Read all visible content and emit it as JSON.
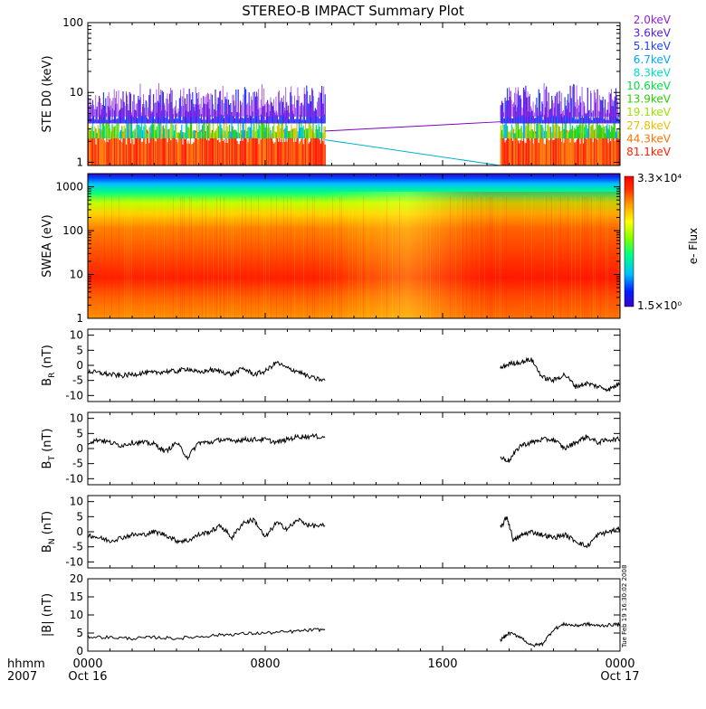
{
  "title": "STEREO-B IMPACT Summary Plot",
  "colors": {
    "axis": "#000000",
    "trace": "#000000",
    "colorbar_stops": [
      "#3a00c8",
      "#0020ff",
      "#00c0ff",
      "#00ff80",
      "#80ff00",
      "#ffff00",
      "#ffa000",
      "#ff3000",
      "#ff0000"
    ]
  },
  "time_axis": {
    "label_line1": "hhmm",
    "label_line2": "2007",
    "range_hours": [
      0,
      24
    ],
    "major_ticks": [
      {
        "h": 0,
        "top": "0000",
        "bottom": "Oct 16"
      },
      {
        "h": 8,
        "top": "0800",
        "bottom": ""
      },
      {
        "h": 16,
        "top": "1600",
        "bottom": ""
      },
      {
        "h": 24,
        "top": "0000",
        "bottom": "Oct 17"
      }
    ],
    "data_gap_hours": [
      10.7,
      18.6
    ]
  },
  "timestamp_note": "Tue Feb 19 16:30:02 2008",
  "chart_data": [
    {
      "id": "ste",
      "type": "line",
      "ylabel": "STE D0 (keV)",
      "yscale": "log",
      "ylim": [
        0.9,
        100
      ],
      "yticks": [
        {
          "v": 1,
          "label": "1"
        },
        {
          "v": 10,
          "label": "10"
        },
        {
          "v": 100,
          "label": "100"
        }
      ],
      "series": [
        {
          "name": "2.0keV",
          "color": "#9020e0"
        },
        {
          "name": "3.6keV",
          "color": "#5020e8"
        },
        {
          "name": "5.1keV",
          "color": "#2040ff"
        },
        {
          "name": "6.7keV",
          "color": "#00a8ff"
        },
        {
          "name": "8.3keV",
          "color": "#00e0c0"
        },
        {
          "name": "10.6keV",
          "color": "#00e040"
        },
        {
          "name": "13.9keV",
          "color": "#30d000"
        },
        {
          "name": "19.1keV",
          "color": "#a0e000"
        },
        {
          "name": "27.8keV",
          "color": "#e8c000"
        },
        {
          "name": "44.3keV",
          "color": "#ff7000"
        },
        {
          "name": "81.1keV",
          "color": "#ff2000"
        }
      ],
      "gap_lines": [
        {
          "x": [
            10.7,
            18.6
          ],
          "y": [
            2.8,
            3.8
          ],
          "color": "#8000c0"
        },
        {
          "x": [
            10.7,
            18.6
          ],
          "y": [
            2.1,
            0.9
          ],
          "color": "#00b0d0"
        }
      ]
    },
    {
      "id": "swea",
      "type": "heatmap",
      "ylabel": "SWEA (eV)",
      "yscale": "log",
      "ylim": [
        1,
        2000
      ],
      "yticks": [
        {
          "v": 1,
          "label": "1"
        },
        {
          "v": 10,
          "label": "10"
        },
        {
          "v": 100,
          "label": "100"
        },
        {
          "v": 1000,
          "label": "1000"
        }
      ],
      "colorbar_label": "e- Flux",
      "colorbar_max": "3.3×10⁴",
      "colorbar_min": "1.5×10⁰"
    },
    {
      "id": "br",
      "type": "line",
      "ylabel": "BR (nT)",
      "label_main": "B",
      "label_sub": "R",
      "label_unit": " (nT)",
      "ylim": [
        -12,
        12
      ],
      "yticks": [
        {
          "v": -10,
          "label": "-10"
        },
        {
          "v": -5,
          "label": "-5"
        },
        {
          "v": 0,
          "label": "0"
        },
        {
          "v": 5,
          "label": "5"
        },
        {
          "v": 10,
          "label": "10"
        }
      ],
      "segments": [
        {
          "x": [
            0,
            0.5,
            1,
            1.5,
            2,
            2.5,
            3,
            3.5,
            4,
            4.5,
            5,
            5.5,
            6,
            6.5,
            7,
            7.5,
            8,
            8.5,
            9,
            9.5,
            10,
            10.7
          ],
          "y": [
            -2,
            -2.5,
            -3,
            -3.5,
            -3,
            -2.5,
            -2.5,
            -2,
            -2,
            -1,
            -2.5,
            -1.5,
            -2,
            -3,
            -1,
            -3,
            -2,
            1,
            -1,
            -2,
            -4,
            -5
          ]
        },
        {
          "x": [
            18.6,
            19,
            19.5,
            20,
            20.5,
            21,
            21.5,
            22,
            22.5,
            23,
            23.5,
            24
          ],
          "y": [
            -1,
            0.5,
            1,
            2,
            -4,
            -5,
            -3,
            -7,
            -6,
            -7,
            -8,
            -6
          ]
        }
      ]
    },
    {
      "id": "bt",
      "type": "line",
      "ylabel": "BT (nT)",
      "label_main": "B",
      "label_sub": "T",
      "label_unit": " (nT)",
      "ylim": [
        -12,
        12
      ],
      "yticks": [
        {
          "v": -10,
          "label": "-10"
        },
        {
          "v": -5,
          "label": "-5"
        },
        {
          "v": 0,
          "label": "0"
        },
        {
          "v": 5,
          "label": "5"
        },
        {
          "v": 10,
          "label": "10"
        }
      ],
      "segments": [
        {
          "x": [
            0,
            0.5,
            1,
            1.5,
            2,
            2.5,
            3,
            3.5,
            4,
            4.5,
            5,
            5.5,
            6,
            6.5,
            7,
            7.5,
            8,
            8.5,
            9,
            9.5,
            10,
            10.7
          ],
          "y": [
            2,
            3,
            2,
            1,
            2,
            2,
            1.5,
            -1,
            2,
            -3,
            2,
            2,
            3,
            2.5,
            3,
            3,
            3,
            2,
            3,
            4,
            4,
            4
          ]
        },
        {
          "x": [
            18.6,
            19,
            19.5,
            20,
            20.5,
            21,
            21.5,
            22,
            22.5,
            23,
            23.5,
            24
          ],
          "y": [
            -3,
            -4,
            1,
            2,
            3,
            3,
            0,
            2,
            4,
            2,
            3,
            3
          ]
        }
      ]
    },
    {
      "id": "bn",
      "type": "line",
      "ylabel": "BN (nT)",
      "label_main": "B",
      "label_sub": "N",
      "label_unit": " (nT)",
      "ylim": [
        -12,
        12
      ],
      "yticks": [
        {
          "v": -10,
          "label": "-10"
        },
        {
          "v": -5,
          "label": "-5"
        },
        {
          "v": 0,
          "label": "0"
        },
        {
          "v": 5,
          "label": "5"
        },
        {
          "v": 10,
          "label": "10"
        }
      ],
      "segments": [
        {
          "x": [
            0,
            0.5,
            1,
            1.5,
            2,
            2.5,
            3,
            3.5,
            4,
            4.5,
            5,
            5.5,
            6,
            6.5,
            7,
            7.5,
            8,
            8.5,
            9,
            9.5,
            10,
            10.7
          ],
          "y": [
            -1,
            -2,
            -3,
            -2,
            -1,
            -1,
            0,
            -1,
            -3,
            -3,
            -1,
            0,
            2,
            -2,
            3,
            4,
            -2,
            3,
            1,
            4,
            2,
            2
          ]
        },
        {
          "x": [
            18.6,
            18.9,
            19.2,
            19.6,
            20,
            20.5,
            21,
            21.5,
            22,
            22.5,
            23,
            23.5,
            24
          ],
          "y": [
            1,
            5,
            -3,
            -1,
            0,
            -1,
            -2,
            -1,
            -3,
            -5,
            -1,
            0,
            1
          ]
        }
      ]
    },
    {
      "id": "bmag",
      "type": "line",
      "ylabel": "|B| (nT)",
      "label_main": "|B|",
      "label_sub": "",
      "label_unit": " (nT)",
      "ylim": [
        0,
        20
      ],
      "yticks": [
        {
          "v": 0,
          "label": "0"
        },
        {
          "v": 5,
          "label": "5"
        },
        {
          "v": 10,
          "label": "10"
        },
        {
          "v": 15,
          "label": "15"
        },
        {
          "v": 20,
          "label": "20"
        }
      ],
      "segments": [
        {
          "x": [
            0,
            1,
            2,
            3,
            4,
            5,
            6,
            7,
            8,
            9,
            10,
            10.7
          ],
          "y": [
            4,
            3.8,
            3.5,
            3.8,
            3.5,
            4,
            4.5,
            4.8,
            5,
            5.3,
            5.8,
            6
          ]
        },
        {
          "x": [
            18.6,
            19,
            19.5,
            20,
            20.5,
            21,
            21.5,
            22,
            22.5,
            23,
            23.5,
            24
          ],
          "y": [
            3,
            5,
            4,
            1.5,
            2,
            6,
            7.5,
            7,
            7.5,
            7,
            7.2,
            7.5
          ]
        }
      ]
    }
  ]
}
